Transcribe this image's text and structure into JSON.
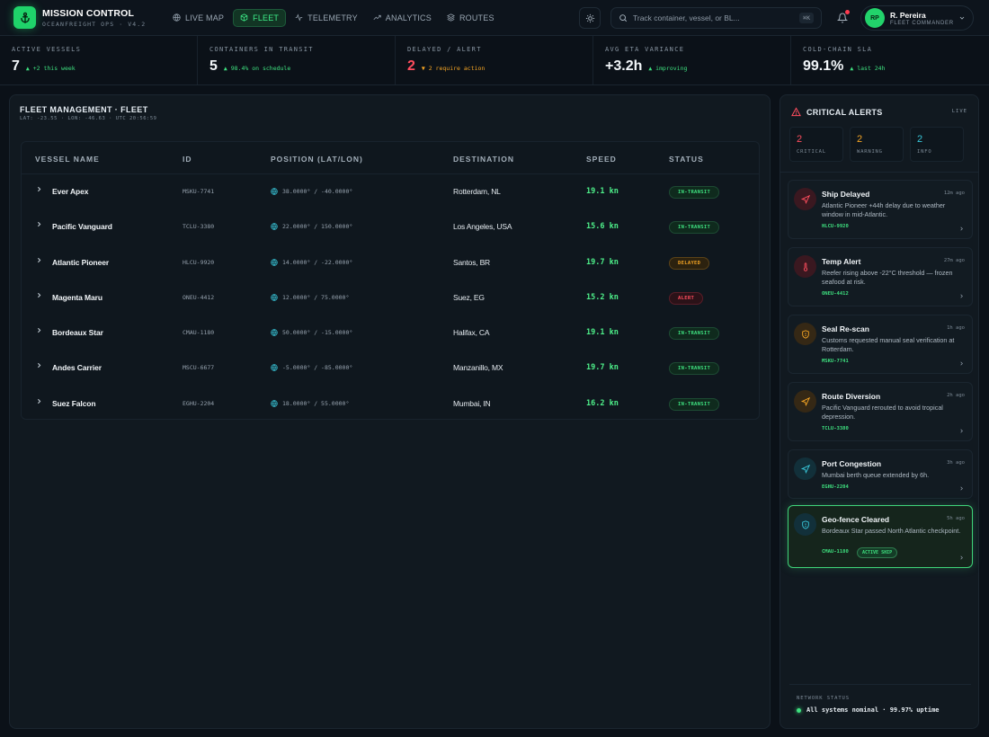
{
  "brand": {
    "title": "MISSION CONTROL",
    "subtitle": "OCEANFREIGHT OPS · V4.2"
  },
  "nav": [
    {
      "label": "LIVE MAP",
      "icon": "globe-icon",
      "active": false
    },
    {
      "label": "FLEET",
      "icon": "box-icon",
      "active": true
    },
    {
      "label": "TELEMETRY",
      "icon": "pulse-icon",
      "active": false
    },
    {
      "label": "ANALYTICS",
      "icon": "trend-icon",
      "active": false
    },
    {
      "label": "ROUTES",
      "icon": "layers-icon",
      "active": false
    }
  ],
  "search": {
    "placeholder": "Track container, vessel, or BL...",
    "shortcut": "⌘K"
  },
  "user": {
    "initials": "RP",
    "name": "R. Pereira",
    "role": "FLEET COMMANDER"
  },
  "kpis": [
    {
      "label": "ACTIVE VESSELS",
      "value": "7",
      "delta": "▲ +2 this week",
      "tone": "good"
    },
    {
      "label": "CONTAINERS IN TRANSIT",
      "value": "5",
      "delta": "▲ 98.4% on schedule",
      "tone": "good"
    },
    {
      "label": "DELAYED / ALERT",
      "value": "2",
      "delta": "▼ 2 require action",
      "tone": "warn"
    },
    {
      "label": "AVG ETA VARIANCE",
      "value": "+3.2h",
      "delta": "▲ improving",
      "tone": "good"
    },
    {
      "label": "COLD-CHAIN SLA",
      "value": "99.1%",
      "delta": "▲ last 24h",
      "tone": "good"
    }
  ],
  "fleet": {
    "title": "FLEET MANAGEMENT · FLEET",
    "subtitle": "LAT: -23.55 · LON: -46.63 · UTC 20:56:59",
    "columns": [
      "VESSEL NAME",
      "ID",
      "POSITION (LAT/LON)",
      "DESTINATION",
      "SPEED",
      "STATUS"
    ],
    "rows": [
      {
        "name": "Ever Apex",
        "id": "MSKU-7741",
        "position": "38.0000° / -40.0000°",
        "destination": "Rotterdam, NL",
        "speed": "19.1 kn",
        "status": "IN-TRANSIT"
      },
      {
        "name": "Pacific Vanguard",
        "id": "TCLU-3380",
        "position": "22.0000° / 150.0000°",
        "destination": "Los Angeles, USA",
        "speed": "15.6 kn",
        "status": "IN-TRANSIT"
      },
      {
        "name": "Atlantic Pioneer",
        "id": "HLCU-9920",
        "position": "14.0000° / -22.0000°",
        "destination": "Santos, BR",
        "speed": "19.7 kn",
        "status": "DELAYED"
      },
      {
        "name": "Magenta Maru",
        "id": "ONEU-4412",
        "position": "12.0000° / 75.0000°",
        "destination": "Suez, EG",
        "speed": "15.2 kn",
        "status": "ALERT"
      },
      {
        "name": "Bordeaux Star",
        "id": "CMAU-1180",
        "position": "50.0000° / -15.0000°",
        "destination": "Halifax, CA",
        "speed": "19.1 kn",
        "status": "IN-TRANSIT"
      },
      {
        "name": "Andes Carrier",
        "id": "MSCU-6677",
        "position": "-5.0000° / -85.0000°",
        "destination": "Manzanillo, MX",
        "speed": "19.7 kn",
        "status": "IN-TRANSIT"
      },
      {
        "name": "Suez Falcon",
        "id": "EGHU-2204",
        "position": "18.0000° / 55.0000°",
        "destination": "Mumbai, IN",
        "speed": "16.2 kn",
        "status": "IN-TRANSIT"
      }
    ]
  },
  "alerts": {
    "title": "CRITICAL ALERTS",
    "live": "LIVE",
    "counts": [
      {
        "num": "2",
        "label": "CRITICAL",
        "color": "#ff4d5e"
      },
      {
        "num": "2",
        "label": "WARNING",
        "color": "#f5a524"
      },
      {
        "num": "2",
        "label": "INFO",
        "color": "#38c6d9"
      }
    ],
    "items": [
      {
        "title": "Ship Delayed",
        "time": "12m ago",
        "desc": "Atlantic Pioneer +44h delay due to weather window in mid-Atlantic.",
        "code": "HLCU-9920",
        "tone": "red",
        "icon": "navigation-icon"
      },
      {
        "title": "Temp Alert",
        "time": "27m ago",
        "desc": "Reefer rising above -22°C threshold — frozen seafood at risk.",
        "code": "ONEU-4412",
        "tone": "red",
        "icon": "thermometer-icon"
      },
      {
        "title": "Seal Re-scan",
        "time": "1h ago",
        "desc": "Customs requested manual seal verification at Rotterdam.",
        "code": "MSKU-7741",
        "tone": "amber",
        "icon": "shield-icon"
      },
      {
        "title": "Route Diversion",
        "time": "2h ago",
        "desc": "Pacific Vanguard rerouted to avoid tropical depression.",
        "code": "TCLU-3380",
        "tone": "amber",
        "icon": "navigation-icon"
      },
      {
        "title": "Port Congestion",
        "time": "3h ago",
        "desc": "Mumbai berth queue extended by 6h.",
        "code": "EGHU-2204",
        "tone": "teal",
        "icon": "navigation-icon"
      },
      {
        "title": "Geo-fence Cleared",
        "time": "5h ago",
        "desc": "Bordeaux Star passed North Atlantic checkpoint.",
        "code": "CMAU-1180",
        "tone": "teal",
        "icon": "shield-icon",
        "tag": "ACTIVE SHIP",
        "active": true
      }
    ]
  },
  "network": {
    "label": "NETWORK STATUS",
    "text": "All systems nominal · 99.97% uptime"
  }
}
